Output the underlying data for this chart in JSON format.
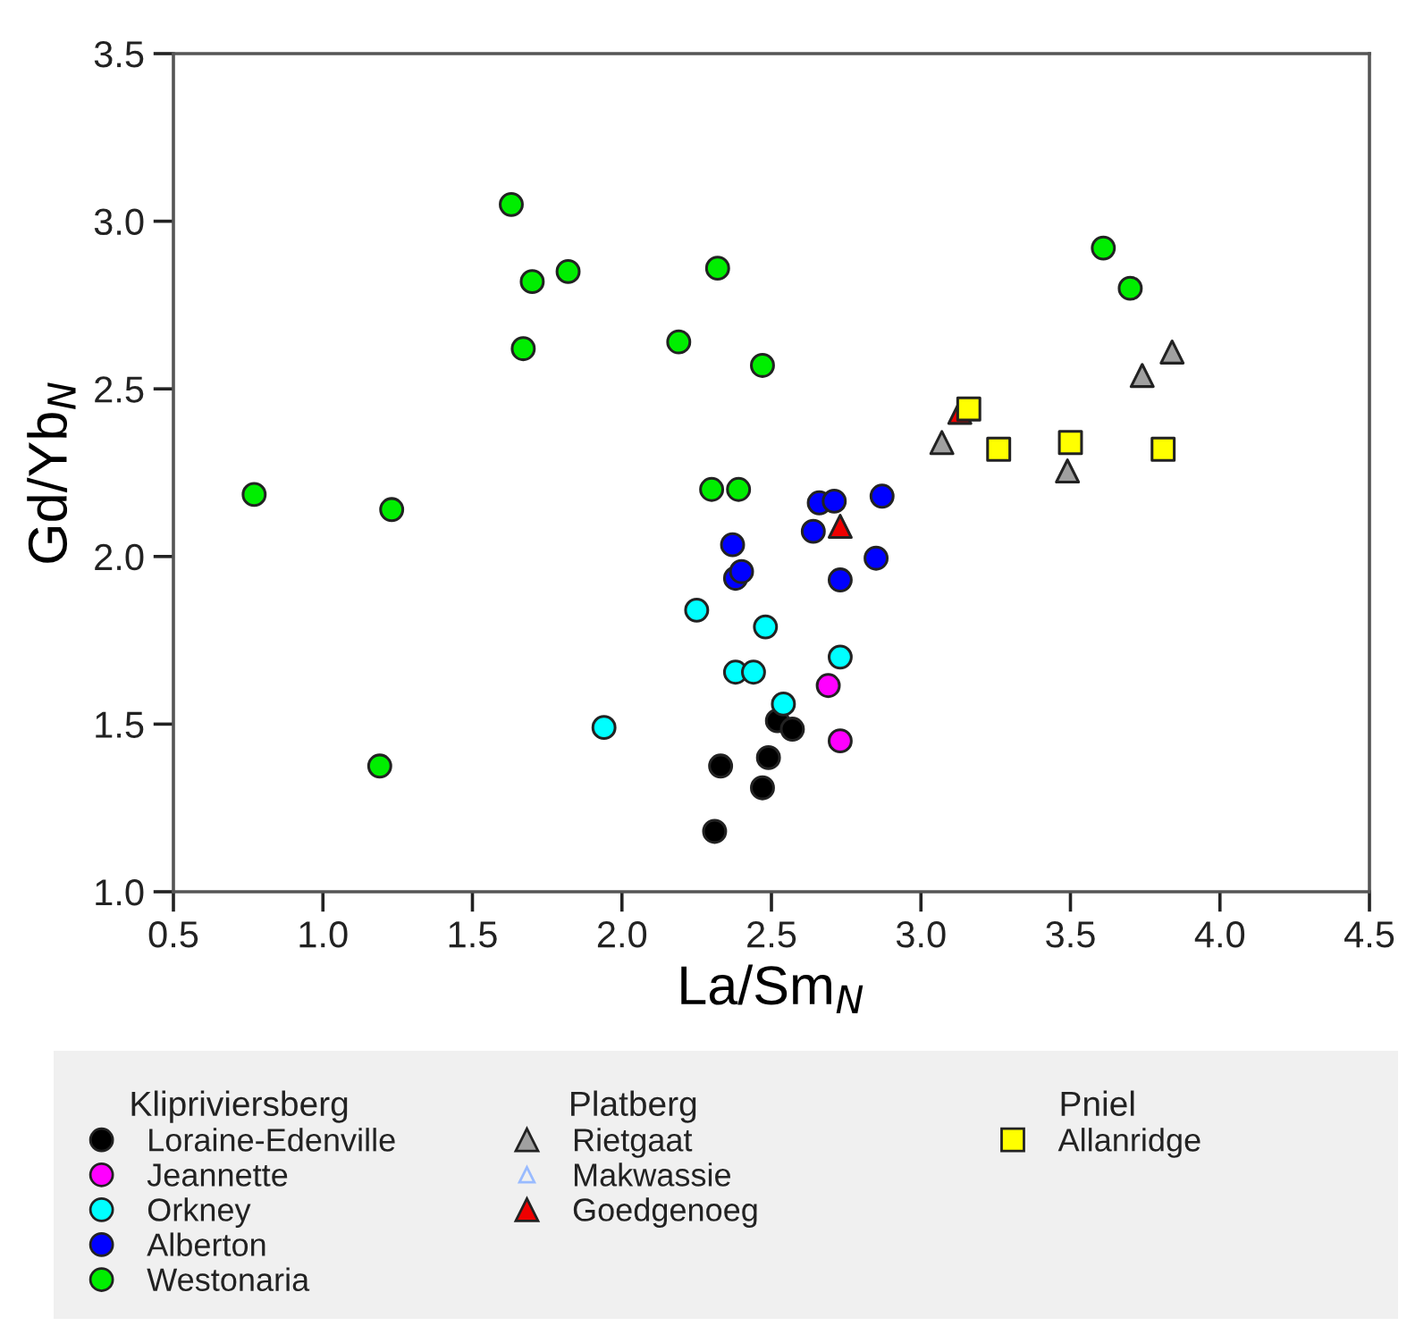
{
  "chart_data": {
    "type": "scatter",
    "xlabel": "La/Sm$_{N}$",
    "ylabel": "Gd/Yb$_{N}$",
    "xlim": [
      0.5,
      4.5
    ],
    "xticks": [
      {
        "value": 0.5,
        "label": "0.5"
      },
      {
        "value": 1.0,
        "label": "1.0"
      },
      {
        "value": 1.5,
        "label": "1.5"
      },
      {
        "value": 2.0,
        "label": "2.0"
      },
      {
        "value": 2.5,
        "label": "2.5"
      },
      {
        "value": 3.0,
        "label": "3.0"
      },
      {
        "value": 3.5,
        "label": "3.5"
      },
      {
        "value": 4.0,
        "label": "4.0"
      },
      {
        "value": 4.5,
        "label": "4.5"
      }
    ],
    "ylim": [
      1.0,
      3.5
    ],
    "yticks": [
      {
        "value": 1.0,
        "label": "1.0"
      },
      {
        "value": 1.5,
        "label": "1.5"
      },
      {
        "value": 2.0,
        "label": "2.0"
      },
      {
        "value": 2.5,
        "label": "2.5"
      },
      {
        "value": 3.0,
        "label": "3.0"
      },
      {
        "value": 3.5,
        "label": "3.5"
      }
    ],
    "grid": false,
    "legend": "bottom",
    "annotations": [
      "Klipriviersberg",
      "Platberg",
      "Pniel"
    ],
    "series": [
      {
        "name": "Loraine-Edenville",
        "color": "#000000",
        "marker": "circle",
        "x": [
          2.31,
          2.33,
          2.47,
          2.49,
          2.52,
          2.57
        ],
        "values": [
          1.18,
          1.375,
          1.31,
          1.4,
          1.51,
          1.485
        ]
      },
      {
        "name": "Jeannette",
        "color": "#ff00ff",
        "marker": "circle",
        "x": [
          2.69,
          2.73
        ],
        "values": [
          1.615,
          1.45
        ]
      },
      {
        "name": "Orkney",
        "color": "#00ffff",
        "marker": "circle",
        "x": [
          1.94,
          2.25,
          2.48,
          2.38,
          2.44,
          2.54,
          2.73
        ],
        "values": [
          1.49,
          1.84,
          1.79,
          1.655,
          1.655,
          1.56,
          1.7
        ]
      },
      {
        "name": "Alberton",
        "color": "#0000ff",
        "marker": "circle",
        "x": [
          2.66,
          2.71,
          2.87,
          2.64,
          2.37,
          2.38,
          2.4,
          2.73,
          2.85
        ],
        "values": [
          2.16,
          2.165,
          2.18,
          2.075,
          2.035,
          1.935,
          1.955,
          1.93,
          1.995
        ]
      },
      {
        "name": "Westonaria",
        "color": "#00ee00",
        "marker": "circle",
        "x": [
          0.77,
          1.23,
          1.19,
          1.63,
          1.7,
          1.82,
          1.67,
          2.19,
          2.32,
          2.47,
          2.3,
          2.39,
          3.61,
          3.7
        ],
        "values": [
          2.185,
          2.14,
          1.375,
          3.05,
          2.82,
          2.85,
          2.62,
          2.64,
          2.86,
          2.57,
          2.2,
          2.2,
          2.92,
          2.8
        ]
      },
      {
        "name": "Rietgaat",
        "color": "#a0a0a0",
        "marker": "triangle",
        "x": [
          3.07,
          3.49,
          3.74,
          3.84
        ],
        "values": [
          2.34,
          2.255,
          2.54,
          2.61
        ]
      },
      {
        "name": "Makwassie",
        "color": "#99bbff",
        "marker": "triangle"
      },
      {
        "name": "Goedgenoeg",
        "color": "#ee0000",
        "marker": "triangle",
        "x": [
          2.73,
          3.13
        ],
        "values": [
          2.09,
          2.43
        ]
      },
      {
        "name": "Allanridge",
        "color": "#ffff00",
        "marker": "square",
        "x": [
          3.16,
          3.26,
          3.5,
          3.81
        ],
        "values": [
          2.44,
          2.32,
          2.34,
          2.32
        ]
      }
    ]
  }
}
